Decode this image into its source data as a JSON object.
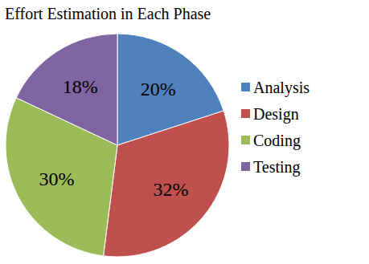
{
  "chart_data": {
    "type": "pie",
    "title": "Effort Estimation in Each Phase",
    "categories": [
      "Analysis",
      "Design",
      "Coding",
      "Testing"
    ],
    "values": [
      20,
      32,
      30,
      18
    ],
    "value_labels": [
      "20%",
      "32%",
      "30%",
      "18%"
    ],
    "colors": [
      "#4f81bd",
      "#c0504d",
      "#9bbb59",
      "#8064a2"
    ],
    "data_labels": true,
    "legend": "right"
  }
}
